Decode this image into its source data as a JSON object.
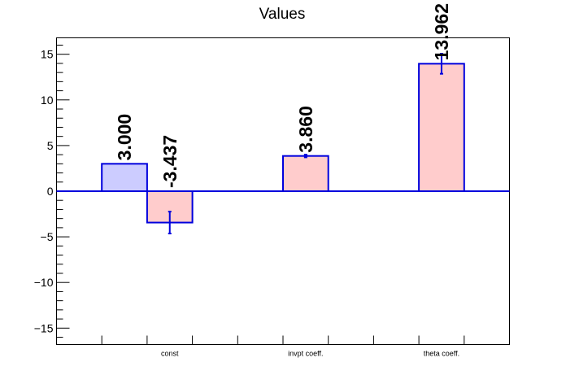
{
  "chart_data": {
    "type": "bar",
    "title": "Values",
    "categories": [
      "const",
      "invpt coeff.",
      "theta coeff."
    ],
    "ylim": [
      -16.8,
      16.8
    ],
    "y_ticks": [
      -15,
      -10,
      -5,
      0,
      5,
      10,
      15
    ],
    "y_tick_labels": [
      "−15",
      "−10",
      "−5",
      "0",
      "5",
      "10",
      "15"
    ],
    "bars": [
      {
        "category": "const",
        "value": 3.0,
        "error": 0,
        "label": "3.000",
        "fill": "#ccccff"
      },
      {
        "category": "const",
        "value": -3.437,
        "error": 1.2,
        "label": "-3.437",
        "fill": "#ffcccc"
      },
      {
        "category": "invpt coeff.",
        "value": 3.86,
        "error": 0.15,
        "label": "3.860",
        "fill": "#ffcccc"
      },
      {
        "category": "theta coeff.",
        "value": 13.962,
        "error": 1.1,
        "label": "13.962",
        "fill": "#ffcccc"
      }
    ],
    "grid": false,
    "legend": "none"
  },
  "colors": {
    "bar_outline": "#0000dd",
    "zero_line": "#0000dd",
    "axis": "#000000"
  }
}
